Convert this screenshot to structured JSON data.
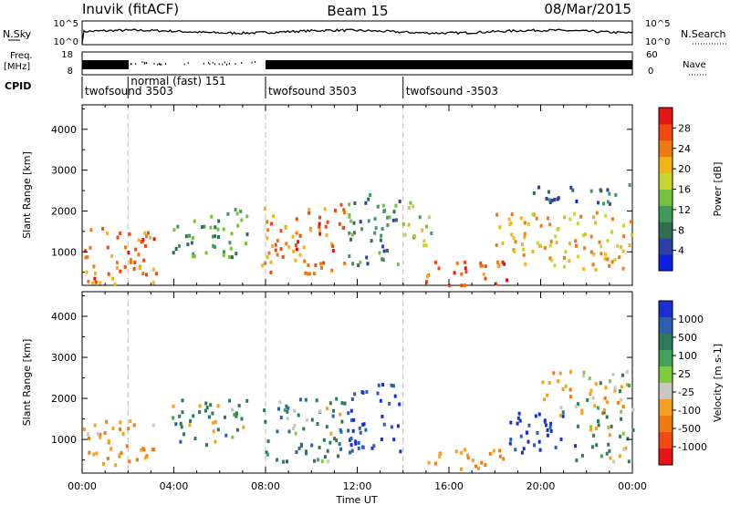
{
  "header": {
    "station": "Inuvik (fitACF)",
    "beam": "Beam 15",
    "date": "08/Mar/2015"
  },
  "top_panels": {
    "nsky_label": "N.Sky",
    "nsky_ticks": [
      "10^5",
      "10^0"
    ],
    "nsearch_label": "N.Search",
    "nsearch_ticks": [
      "10^5",
      "10^0"
    ],
    "freq_label": "Freq.",
    "freq_unit": "[MHz]",
    "freq_ticks": [
      "18",
      "8"
    ],
    "nave_label": "Nave",
    "nave_ticks": [
      "60",
      "0"
    ],
    "cpid_label": "CPID",
    "cpid_segments": [
      {
        "label": "twofsound 3503",
        "start_h": 0.0,
        "end_h": 2.0
      },
      {
        "label": "normal (fast) 151",
        "start_h": 2.0,
        "end_h": 8.0
      },
      {
        "label": "twofsound 3503",
        "start_h": 8.0,
        "end_h": 14.0
      },
      {
        "label": "twofsound -3503",
        "start_h": 14.0,
        "end_h": 24.0
      }
    ]
  },
  "chart_data": [
    {
      "type": "heatmap",
      "name": "power",
      "ylabel": "Slant Range [km]",
      "xlabel": "Time UT",
      "xlim": [
        0,
        24
      ],
      "ylim": [
        180,
        4600
      ],
      "x_ticks": [
        "00:00",
        "04:00",
        "08:00",
        "12:00",
        "16:00",
        "20:00",
        "00:00"
      ],
      "y_ticks": [
        1000,
        2000,
        3000,
        4000
      ],
      "colorbar": {
        "label": "Power [dB]",
        "ticks": [
          "28",
          "24",
          "20",
          "16",
          "12",
          "8",
          "4"
        ],
        "colors": [
          "#0a22e6",
          "#2e3fa6",
          "#2f6e4f",
          "#3f9a5c",
          "#78c33e",
          "#c6d530",
          "#f5b31a",
          "#f07a12",
          "#f04a10",
          "#e81515"
        ]
      },
      "regions": [
        {
          "t0": 0.0,
          "t1": 3.2,
          "r0": 200,
          "r1": 1700,
          "value": 26
        },
        {
          "t0": 3.8,
          "t1": 7.2,
          "r0": 900,
          "r1": 2100,
          "value": 12
        },
        {
          "t0": 7.8,
          "t1": 11.5,
          "r0": 500,
          "r1": 2200,
          "value": 26
        },
        {
          "t0": 11.5,
          "t1": 13.9,
          "r0": 700,
          "r1": 2500,
          "value": 10
        },
        {
          "t0": 13.9,
          "t1": 15.2,
          "r0": 1200,
          "r1": 2300,
          "value": 18
        },
        {
          "t0": 14.8,
          "t1": 18.5,
          "r0": 200,
          "r1": 800,
          "value": 28
        },
        {
          "t0": 18.0,
          "t1": 24.0,
          "r0": 600,
          "r1": 2000,
          "value": 22
        },
        {
          "t0": 19.5,
          "t1": 24.0,
          "r0": 2200,
          "r1": 2700,
          "value": 8
        }
      ]
    },
    {
      "type": "heatmap",
      "name": "velocity",
      "ylabel": "Slant Range [km]",
      "xlabel": "Time UT",
      "xlim": [
        0,
        24
      ],
      "ylim": [
        180,
        4600
      ],
      "x_ticks": [
        "00:00",
        "04:00",
        "08:00",
        "12:00",
        "16:00",
        "20:00",
        "00:00"
      ],
      "y_ticks": [
        1000,
        2000,
        3000,
        4000
      ],
      "colorbar": {
        "label": "Velocity [m s-1]",
        "ticks": [
          "1000",
          "500",
          "100",
          "25",
          "-25",
          "-100",
          "-500",
          "-1000"
        ],
        "colors": [
          "#1a2ed8",
          "#2d5fb0",
          "#2f7a5a",
          "#3ea25a",
          "#7ccc3c",
          "#c8c8c0",
          "#f5a020",
          "#f07a10",
          "#f04a10",
          "#e81515"
        ]
      },
      "regions": [
        {
          "t0": 0.0,
          "t1": 3.2,
          "r0": 400,
          "r1": 1500,
          "value": -300
        },
        {
          "t0": 3.8,
          "t1": 7.2,
          "r0": 900,
          "r1": 2000,
          "value": 80
        },
        {
          "t0": 7.8,
          "t1": 11.5,
          "r0": 500,
          "r1": 2100,
          "value": 150
        },
        {
          "t0": 11.5,
          "t1": 13.9,
          "r0": 700,
          "r1": 2400,
          "value": 700
        },
        {
          "t0": 15.0,
          "t1": 18.5,
          "r0": 250,
          "r1": 800,
          "value": -300
        },
        {
          "t0": 18.5,
          "t1": 21.5,
          "r0": 700,
          "r1": 1700,
          "value": 900
        },
        {
          "t0": 20.0,
          "t1": 24.0,
          "r0": 1500,
          "r1": 2700,
          "value": -100
        },
        {
          "t0": 21.5,
          "t1": 24.0,
          "r0": 500,
          "r1": 1500,
          "value": 60
        }
      ]
    }
  ]
}
